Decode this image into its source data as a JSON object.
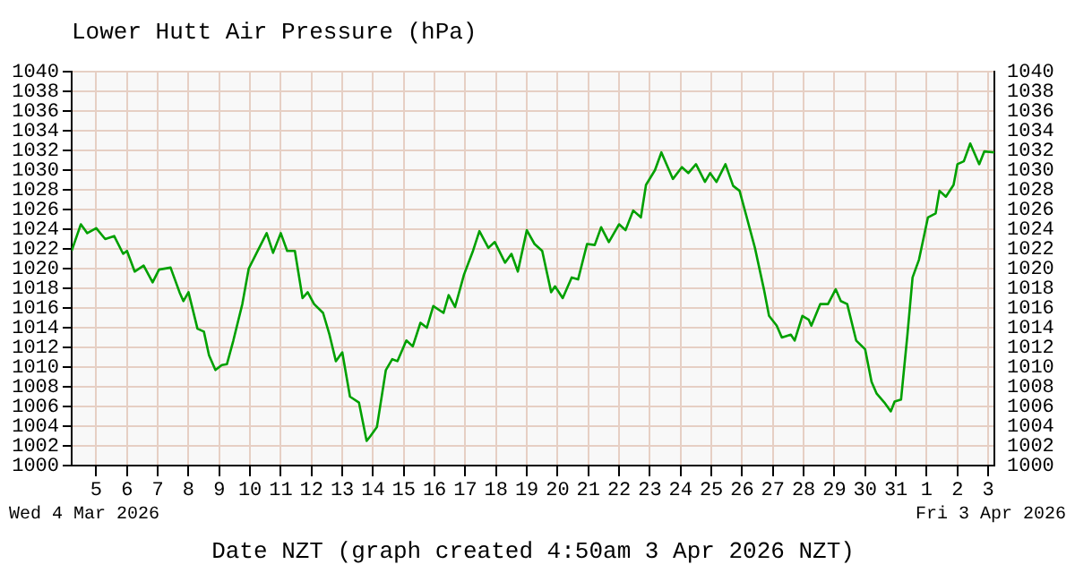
{
  "chart_data": {
    "type": "line",
    "title": "Lower Hutt Air Pressure (hPa)",
    "xlabel": "Date NZT (graph created 4:50am 3 Apr 2026 NZT)",
    "annotations": [
      "Wed 4 Mar 2026",
      "Fri 3 Apr 2026"
    ],
    "x": [
      "2026-03-04T04:50",
      "2026-03-04T12:00",
      "2026-03-04T17:00",
      "2026-03-05T00:00",
      "2026-03-05T07:00",
      "2026-03-05T14:00",
      "2026-03-05T21:00",
      "2026-03-06T00:00",
      "2026-03-06T06:00",
      "2026-03-06T13:00",
      "2026-03-06T20:00",
      "2026-03-07T01:00",
      "2026-03-07T10:00",
      "2026-03-07T17:00",
      "2026-03-07T20:00",
      "2026-03-08T00:00",
      "2026-03-08T07:00",
      "2026-03-08T12:00",
      "2026-03-08T16:00",
      "2026-03-08T21:00",
      "2026-03-09T02:00",
      "2026-03-09T06:00",
      "2026-03-09T11:00",
      "2026-03-09T18:00",
      "2026-03-09T23:00",
      "2026-03-10T06:00",
      "2026-03-10T13:00",
      "2026-03-10T18:00",
      "2026-03-11T00:00",
      "2026-03-11T05:00",
      "2026-03-11T11:00",
      "2026-03-11T17:00",
      "2026-03-11T21:00",
      "2026-03-12T02:00",
      "2026-03-12T09:00",
      "2026-03-12T14:00",
      "2026-03-12T19:00",
      "2026-03-13T00:00",
      "2026-03-13T06:00",
      "2026-03-13T13:00",
      "2026-03-13T19:00",
      "2026-03-13T22:00",
      "2026-03-14T03:00",
      "2026-03-14T10:00",
      "2026-03-14T15:00",
      "2026-03-14T19:00",
      "2026-03-15T02:00",
      "2026-03-15T07:00",
      "2026-03-15T13:00",
      "2026-03-15T18:00",
      "2026-03-15T23:00",
      "2026-03-16T07:00",
      "2026-03-16T11:00",
      "2026-03-16T16:00",
      "2026-03-16T23:00",
      "2026-03-17T06:00",
      "2026-03-17T11:00",
      "2026-03-17T18:00",
      "2026-03-17T23:00",
      "2026-03-18T07:00",
      "2026-03-18T12:00",
      "2026-03-18T17:00",
      "2026-03-19T00:00",
      "2026-03-19T06:00",
      "2026-03-19T12:00",
      "2026-03-19T19:00",
      "2026-03-19T22:00",
      "2026-03-20T04:00",
      "2026-03-20T11:00",
      "2026-03-20T16:00",
      "2026-03-20T23:00",
      "2026-03-21T05:00",
      "2026-03-21T10:00",
      "2026-03-21T16:00",
      "2026-03-22T00:00",
      "2026-03-22T05:00",
      "2026-03-22T11:00",
      "2026-03-22T17:00",
      "2026-03-22T21:00",
      "2026-03-23T04:00",
      "2026-03-23T09:00",
      "2026-03-23T18:00",
      "2026-03-24T01:00",
      "2026-03-24T06:00",
      "2026-03-24T12:00",
      "2026-03-24T19:00",
      "2026-03-24T23:00",
      "2026-03-25T04:00",
      "2026-03-25T11:00",
      "2026-03-25T17:00",
      "2026-03-25T22:00",
      "2026-03-26T03:00",
      "2026-03-26T10:00",
      "2026-03-26T17:00",
      "2026-03-26T21:00",
      "2026-03-27T03:00",
      "2026-03-27T07:00",
      "2026-03-27T14:00",
      "2026-03-27T17:00",
      "2026-03-27T23:00",
      "2026-03-28T04:00",
      "2026-03-28T06:00",
      "2026-03-28T13:00",
      "2026-03-28T19:00",
      "2026-03-29T01:00",
      "2026-03-29T05:00",
      "2026-03-29T10:00",
      "2026-03-29T17:00",
      "2026-03-30T00:00",
      "2026-03-30T05:00",
      "2026-03-30T09:00",
      "2026-03-30T15:00",
      "2026-03-30T20:00",
      "2026-03-30T23:00",
      "2026-03-31T04:00",
      "2026-03-31T09:00",
      "2026-03-31T13:00",
      "2026-03-31T18:00",
      "2026-04-01T01:00",
      "2026-04-01T07:00",
      "2026-04-01T10:00",
      "2026-04-01T15:00",
      "2026-04-01T21:00",
      "2026-04-02T00:00",
      "2026-04-02T05:00",
      "2026-04-02T10:00",
      "2026-04-02T17:00",
      "2026-04-02T21:00",
      "2026-04-03T04:50"
    ],
    "series": [
      {
        "color": "#00a000",
        "values": [
          1021.8,
          1024.5,
          1023.6,
          1024.1,
          1023,
          1023.3,
          1021.5,
          1021.8,
          1019.7,
          1020.3,
          1018.6,
          1019.9,
          1020.1,
          1017.6,
          1016.7,
          1017.6,
          1013.9,
          1013.6,
          1011.2,
          1009.7,
          1010.2,
          1010.3,
          1012.7,
          1016.4,
          1020,
          1021.8,
          1023.6,
          1021.6,
          1023.6,
          1021.8,
          1021.8,
          1017,
          1017.6,
          1016.4,
          1015.5,
          1013.3,
          1010.6,
          1011.5,
          1007,
          1006.4,
          1002.5,
          1003,
          1003.9,
          1009.7,
          1010.8,
          1010.6,
          1012.7,
          1012.1,
          1014.5,
          1014,
          1016.2,
          1015.5,
          1017.3,
          1016.1,
          1019.4,
          1021.8,
          1023.8,
          1022.1,
          1022.7,
          1020.6,
          1021.5,
          1019.7,
          1023.9,
          1022.5,
          1021.8,
          1017.6,
          1018.2,
          1017,
          1019.1,
          1018.9,
          1022.5,
          1022.4,
          1024.2,
          1022.7,
          1024.5,
          1023.9,
          1025.9,
          1025.2,
          1028.5,
          1030,
          1031.8,
          1029.1,
          1030.3,
          1029.7,
          1030.6,
          1028.8,
          1029.7,
          1028.8,
          1030.6,
          1028.4,
          1027.9,
          1025.5,
          1022.1,
          1017.9,
          1015.2,
          1014.2,
          1013,
          1013.3,
          1012.7,
          1015.2,
          1014.8,
          1014.2,
          1016.4,
          1016.4,
          1017.9,
          1016.7,
          1016.4,
          1012.7,
          1011.8,
          1008.5,
          1007.3,
          1006.4,
          1005.5,
          1006.5,
          1006.7,
          1013.3,
          1019.1,
          1020.9,
          1025.2,
          1025.6,
          1027.9,
          1027.3,
          1028.5,
          1030.6,
          1030.9,
          1032.7,
          1030.6,
          1031.9,
          1031.8
        ]
      }
    ],
    "xlim": [
      "2026-03-04T04:50",
      "2026-04-03T04:50"
    ],
    "xticks": [
      {
        "value": "2026-03-05",
        "label": "5"
      },
      {
        "value": "2026-03-06",
        "label": "6"
      },
      {
        "value": "2026-03-07",
        "label": "7"
      },
      {
        "value": "2026-03-08",
        "label": "8"
      },
      {
        "value": "2026-03-09",
        "label": "9"
      },
      {
        "value": "2026-03-10",
        "label": "10"
      },
      {
        "value": "2026-03-11",
        "label": "11"
      },
      {
        "value": "2026-03-12",
        "label": "12"
      },
      {
        "value": "2026-03-13",
        "label": "13"
      },
      {
        "value": "2026-03-14",
        "label": "14"
      },
      {
        "value": "2026-03-15",
        "label": "15"
      },
      {
        "value": "2026-03-16",
        "label": "16"
      },
      {
        "value": "2026-03-17",
        "label": "17"
      },
      {
        "value": "2026-03-18",
        "label": "18"
      },
      {
        "value": "2026-03-19",
        "label": "19"
      },
      {
        "value": "2026-03-20",
        "label": "20"
      },
      {
        "value": "2026-03-21",
        "label": "21"
      },
      {
        "value": "2026-03-22",
        "label": "22"
      },
      {
        "value": "2026-03-23",
        "label": "23"
      },
      {
        "value": "2026-03-24",
        "label": "24"
      },
      {
        "value": "2026-03-25",
        "label": "25"
      },
      {
        "value": "2026-03-26",
        "label": "26"
      },
      {
        "value": "2026-03-27",
        "label": "27"
      },
      {
        "value": "2026-03-28",
        "label": "28"
      },
      {
        "value": "2026-03-29",
        "label": "29"
      },
      {
        "value": "2026-03-30",
        "label": "30"
      },
      {
        "value": "2026-03-31",
        "label": "31"
      },
      {
        "value": "2026-04-01",
        "label": "1"
      },
      {
        "value": "2026-04-02",
        "label": "2"
      },
      {
        "value": "2026-04-03",
        "label": "3"
      }
    ],
    "ylim": [
      1000,
      1040
    ],
    "yticks": [
      1000,
      1002,
      1004,
      1006,
      1008,
      1010,
      1012,
      1014,
      1016,
      1018,
      1020,
      1022,
      1024,
      1026,
      1028,
      1030,
      1032,
      1034,
      1036,
      1038,
      1040
    ],
    "y2lim": [
      1000,
      1040
    ],
    "y2ticks": [
      1000,
      1002,
      1004,
      1006,
      1008,
      1010,
      1012,
      1014,
      1016,
      1018,
      1020,
      1022,
      1024,
      1026,
      1028,
      1030,
      1032,
      1034,
      1036,
      1038,
      1040
    ],
    "grid": true,
    "legend": false,
    "marker": "none",
    "line_style": "solid"
  }
}
